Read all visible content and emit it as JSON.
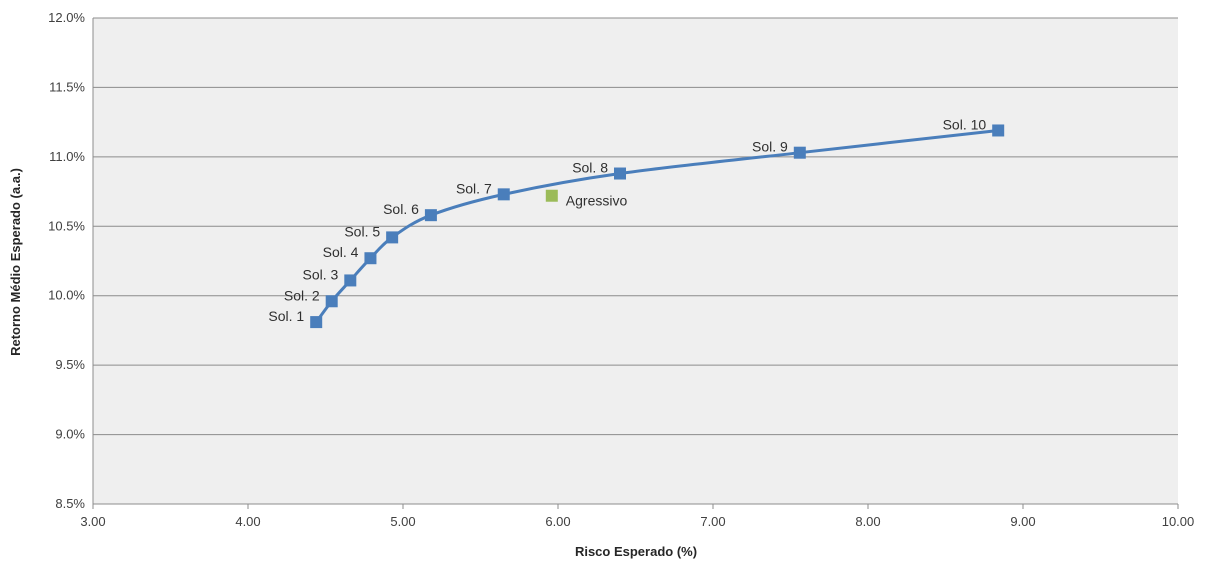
{
  "chart_data": {
    "type": "scatter",
    "title": "",
    "xlabel": "Risco Esperado (%)",
    "ylabel": "Retorno Médio Esperado (a.a.)",
    "xlim": [
      3.0,
      10.0
    ],
    "ylim": [
      8.5,
      12.0
    ],
    "x_ticks": [
      3,
      4,
      5,
      6,
      7,
      8,
      9,
      10
    ],
    "x_tick_labels": [
      "3.00",
      "4.00",
      "5.00",
      "6.00",
      "7.00",
      "8.00",
      "9.00",
      "10.00"
    ],
    "y_ticks": [
      8.5,
      9.0,
      9.5,
      10.0,
      10.5,
      11.0,
      11.5,
      12.0
    ],
    "y_tick_labels": [
      "8.5%",
      "9.0%",
      "9.5%",
      "10.0%",
      "10.5%",
      "11.0%",
      "11.5%",
      "12.0%"
    ],
    "grid": "horizontal",
    "legend": "none",
    "series": [
      {
        "color": "#4a7ebb",
        "marker": "square",
        "line": "smooth",
        "points": [
          {
            "label": "Sol. 1",
            "x": 4.44,
            "y": 9.81
          },
          {
            "label": "Sol. 2",
            "x": 4.54,
            "y": 9.96
          },
          {
            "label": "Sol. 3",
            "x": 4.66,
            "y": 10.11
          },
          {
            "label": "Sol. 4",
            "x": 4.79,
            "y": 10.27
          },
          {
            "label": "Sol. 5",
            "x": 4.93,
            "y": 10.42
          },
          {
            "label": "Sol. 6",
            "x": 5.18,
            "y": 10.58
          },
          {
            "label": "Sol. 7",
            "x": 5.65,
            "y": 10.73
          },
          {
            "label": "Sol. 8",
            "x": 6.4,
            "y": 10.88
          },
          {
            "label": "Sol. 9",
            "x": 7.56,
            "y": 11.03
          },
          {
            "label": "Sol. 10",
            "x": 8.84,
            "y": 11.19
          }
        ]
      },
      {
        "color": "#9bbb59",
        "marker": "square",
        "line": "none",
        "points": [
          {
            "label": "Agressivo",
            "x": 5.96,
            "y": 10.72
          }
        ]
      }
    ]
  }
}
